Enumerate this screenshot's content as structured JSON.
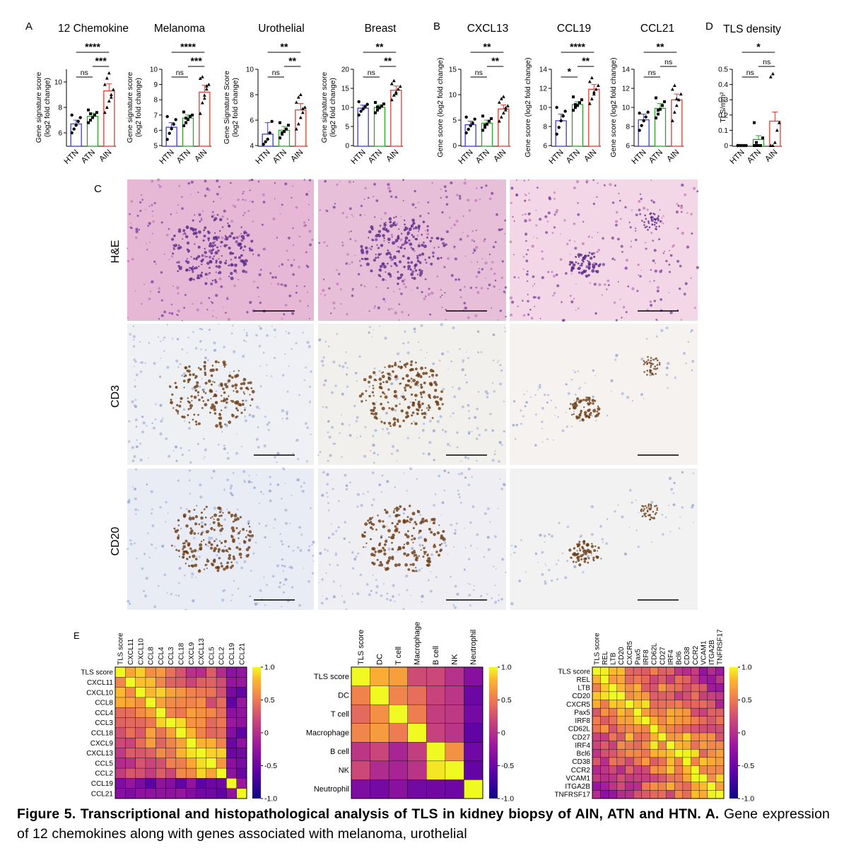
{
  "panel_letters": {
    "a": "A",
    "b": "B",
    "c": "C",
    "d": "D",
    "e": "E"
  },
  "groups": [
    "HTN",
    "ATN",
    "AIN"
  ],
  "group_colors": {
    "HTN": "#3b3bd6",
    "ATN": "#2ca02c",
    "AIN": "#e03c31"
  },
  "chart_data": [
    {
      "type": "bar",
      "title": "12 Chemokine",
      "ylabel": [
        "Gene signature score",
        "(log2 fold change)"
      ],
      "categories": [
        "HTN",
        "ATN",
        "AIN"
      ],
      "values": [
        6.7,
        7.3,
        9.3
      ],
      "errors": [
        0.3,
        0.25,
        0.55
      ],
      "ylim": [
        5,
        11
      ],
      "yticks": [
        6,
        8,
        10
      ],
      "points": [
        [
          6.0,
          6.3,
          6.6,
          6.9,
          7.2,
          7.4
        ],
        [
          6.8,
          7.0,
          7.2,
          7.4,
          7.6,
          7.8,
          7.5
        ],
        [
          7.6,
          8.0,
          8.5,
          9.0,
          9.4,
          9.8,
          10.3,
          10.7,
          8.8
        ]
      ],
      "sig": [
        {
          "from": 0,
          "to": 1,
          "label": "ns"
        },
        {
          "from": 1,
          "to": 2,
          "label": "***"
        },
        {
          "from": 0,
          "to": 2,
          "label": "****"
        }
      ]
    },
    {
      "type": "bar",
      "title": "Melanoma",
      "ylabel": [
        "Gene signature score",
        "(log2 fold change)"
      ],
      "categories": [
        "HTN",
        "ATN",
        "AIN"
      ],
      "values": [
        6.2,
        6.8,
        8.5
      ],
      "errors": [
        0.3,
        0.2,
        0.45
      ],
      "ylim": [
        5,
        10
      ],
      "yticks": [
        5,
        6,
        7,
        8,
        9,
        10
      ],
      "points": [
        [
          5.4,
          5.8,
          6.1,
          6.4,
          6.7,
          6.9
        ],
        [
          6.3,
          6.5,
          6.7,
          6.9,
          7.0,
          7.2,
          6.8
        ],
        [
          7.1,
          7.8,
          8.3,
          8.7,
          9.0,
          9.4,
          9.5,
          8.1,
          8.9
        ]
      ],
      "sig": [
        {
          "from": 0,
          "to": 1,
          "label": "ns"
        },
        {
          "from": 1,
          "to": 2,
          "label": "***"
        },
        {
          "from": 0,
          "to": 2,
          "label": "****"
        }
      ]
    },
    {
      "type": "bar",
      "title": "Urothelial",
      "ylabel": [
        "Gene Signature Score",
        "(log2 fold change)"
      ],
      "categories": [
        "HTN",
        "ATN",
        "AIN"
      ],
      "values": [
        4.9,
        5.2,
        6.8
      ],
      "errors": [
        0.9,
        0.3,
        0.5
      ],
      "ylim": [
        4,
        10
      ],
      "yticks": [
        4,
        6,
        8,
        10
      ],
      "points": [
        [
          4.1,
          4.3,
          4.5,
          5.0,
          5.9
        ],
        [
          4.6,
          4.9,
          5.1,
          5.3,
          5.6,
          5.8,
          5.0
        ],
        [
          5.3,
          5.7,
          6.2,
          6.6,
          7.0,
          7.4,
          7.8,
          8.0,
          6.9
        ]
      ],
      "sig": [
        {
          "from": 0,
          "to": 1,
          "label": "ns"
        },
        {
          "from": 1,
          "to": 2,
          "label": "**"
        },
        {
          "from": 0,
          "to": 2,
          "label": "**"
        }
      ]
    },
    {
      "type": "bar",
      "title": "Breast",
      "ylabel": [
        "Gene signature score",
        "(log2 fold change)"
      ],
      "categories": [
        "HTN",
        "ATN",
        "AIN"
      ],
      "values": [
        9.8,
        10.0,
        14.5
      ],
      "errors": [
        0.8,
        0.6,
        1.1
      ],
      "ylim": [
        0,
        20
      ],
      "yticks": [
        0,
        5,
        10,
        15,
        20
      ],
      "points": [
        [
          8.0,
          9.0,
          9.6,
          10.2,
          10.8,
          11.5
        ],
        [
          8.6,
          9.3,
          9.9,
          10.4,
          10.9,
          11.3,
          10.1
        ],
        [
          12.0,
          13.2,
          14.0,
          14.8,
          15.5,
          16.2,
          17.0,
          13.6
        ]
      ],
      "sig": [
        {
          "from": 0,
          "to": 1,
          "label": "ns"
        },
        {
          "from": 1,
          "to": 2,
          "label": "**"
        },
        {
          "from": 0,
          "to": 2,
          "label": "**"
        }
      ]
    },
    {
      "type": "bar",
      "title": "CXCL13",
      "ylabel": [
        "Gene score (log2 fold change)"
      ],
      "categories": [
        "HTN",
        "ATN",
        "AIN"
      ],
      "values": [
        4.1,
        4.4,
        7.2
      ],
      "errors": [
        0.7,
        0.6,
        0.8
      ],
      "ylim": [
        0,
        15
      ],
      "yticks": [
        0,
        5,
        10,
        15
      ],
      "points": [
        [
          2.5,
          3.2,
          3.9,
          4.4,
          5.2,
          5.6
        ],
        [
          3.0,
          3.6,
          4.2,
          4.8,
          5.3,
          5.8,
          4.0
        ],
        [
          4.8,
          5.6,
          6.4,
          7.0,
          7.8,
          8.5,
          9.2,
          9.6,
          7.4
        ]
      ],
      "sig": [
        {
          "from": 0,
          "to": 1,
          "label": "ns"
        },
        {
          "from": 1,
          "to": 2,
          "label": "**"
        },
        {
          "from": 0,
          "to": 2,
          "label": "**"
        }
      ]
    },
    {
      "type": "bar",
      "title": "CCL19",
      "ylabel": [
        "Gene score (log2 fold change)"
      ],
      "categories": [
        "HTN",
        "ATN",
        "AIN"
      ],
      "values": [
        8.6,
        10.3,
        11.9
      ],
      "errors": [
        0.7,
        0.3,
        0.5
      ],
      "ylim": [
        6,
        14
      ],
      "yticks": [
        6,
        8,
        10,
        12,
        14
      ],
      "points": [
        [
          7.2,
          7.9,
          8.6,
          9.1,
          9.6,
          10.0
        ],
        [
          9.7,
          10.0,
          10.2,
          10.5,
          10.8,
          11.1,
          10.3
        ],
        [
          10.4,
          10.9,
          11.4,
          11.9,
          12.3,
          12.7,
          13.1,
          11.6
        ]
      ],
      "sig": [
        {
          "from": 0,
          "to": 1,
          "label": "*"
        },
        {
          "from": 1,
          "to": 2,
          "label": "**"
        },
        {
          "from": 0,
          "to": 2,
          "label": "****"
        }
      ]
    },
    {
      "type": "bar",
      "title": "CCL21",
      "ylabel": [
        "Gene score (log2 fold change)"
      ],
      "categories": [
        "HTN",
        "ATN",
        "AIN"
      ],
      "values": [
        8.7,
        9.9,
        10.8
      ],
      "errors": [
        0.6,
        0.5,
        0.6
      ],
      "ylim": [
        6,
        14
      ],
      "yticks": [
        6,
        8,
        10,
        12,
        14
      ],
      "points": [
        [
          7.6,
          8.1,
          8.6,
          9.0,
          9.5,
          9.4
        ],
        [
          8.9,
          9.3,
          9.8,
          10.2,
          10.6,
          11.0,
          9.7
        ],
        [
          8.6,
          9.5,
          10.2,
          10.8,
          11.4,
          11.9,
          12.3,
          10.9
        ]
      ],
      "sig": [
        {
          "from": 0,
          "to": 1,
          "label": "ns"
        },
        {
          "from": 1,
          "to": 2,
          "label": "ns"
        },
        {
          "from": 0,
          "to": 2,
          "label": "**"
        }
      ]
    },
    {
      "type": "bar",
      "title": "TLS density",
      "ylabel": [
        "TLS/mm²"
      ],
      "categories": [
        "HTN",
        "ATN",
        "AIN"
      ],
      "values": [
        0.0,
        0.04,
        0.16
      ],
      "errors": [
        0.0,
        0.025,
        0.06
      ],
      "ylim": [
        0,
        0.5
      ],
      "yticks": [
        0.0,
        0.1,
        0.2,
        0.3,
        0.4,
        0.5
      ],
      "points": [
        [
          0,
          0,
          0,
          0,
          0,
          0
        ],
        [
          0,
          0,
          0,
          0,
          0.05,
          0.15,
          0.02
        ],
        [
          0,
          0,
          0.02,
          0.1,
          0.15,
          0.45,
          0.47
        ]
      ],
      "sig": [
        {
          "from": 0,
          "to": 1,
          "label": "ns"
        },
        {
          "from": 1,
          "to": 2,
          "label": "ns"
        },
        {
          "from": 0,
          "to": 2,
          "label": "*"
        }
      ]
    },
    {
      "type": "heatmap",
      "labels": [
        "TLS score",
        "CXCL11",
        "CXCL10",
        "CCL8",
        "CCL4",
        "CCL3",
        "CCL18",
        "CXCL9",
        "CXCL13",
        "CCL5",
        "CCL2",
        "CCL19",
        "CCL21"
      ],
      "colorbar": {
        "min": -1.0,
        "max": 1.0,
        "ticks": [
          "1.0",
          "0.5",
          "0",
          "-0.5",
          "-1.0"
        ]
      }
    },
    {
      "type": "heatmap",
      "labels": [
        "TLS score",
        "DC",
        "T cell",
        "Macrophage",
        "B cell",
        "NK",
        "Neutrophil"
      ],
      "colorbar": {
        "min": -1.0,
        "max": 1.0,
        "ticks": [
          "1.0",
          "0.5",
          "0",
          "-0.5",
          "-1.0"
        ]
      }
    },
    {
      "type": "heatmap",
      "labels": [
        "TLS score",
        "REL",
        "LTB",
        "CD20",
        "CXCR5",
        "Pax5",
        "IRF8",
        "CD62L",
        "CD27",
        "IRF4",
        "Bcl6",
        "CD38",
        "CCR2",
        "VCAM1",
        "ITGA2B",
        "TNFRSF17"
      ],
      "colorbar": {
        "min": -1.0,
        "max": 1.0,
        "ticks": [
          "1.0",
          "0.5",
          "0",
          "-0.5",
          "-1.0"
        ]
      }
    }
  ],
  "histology": {
    "rows": [
      "H&E",
      "CD3",
      "CD20"
    ]
  },
  "caption": {
    "title": "Figure 5. Transcriptional and histopathological analysis of TLS in kidney biopsy of AIN, ATN and HTN. A.",
    "text": " Gene expression of 12 chemokines along with genes associated with melanoma, urothelial"
  }
}
